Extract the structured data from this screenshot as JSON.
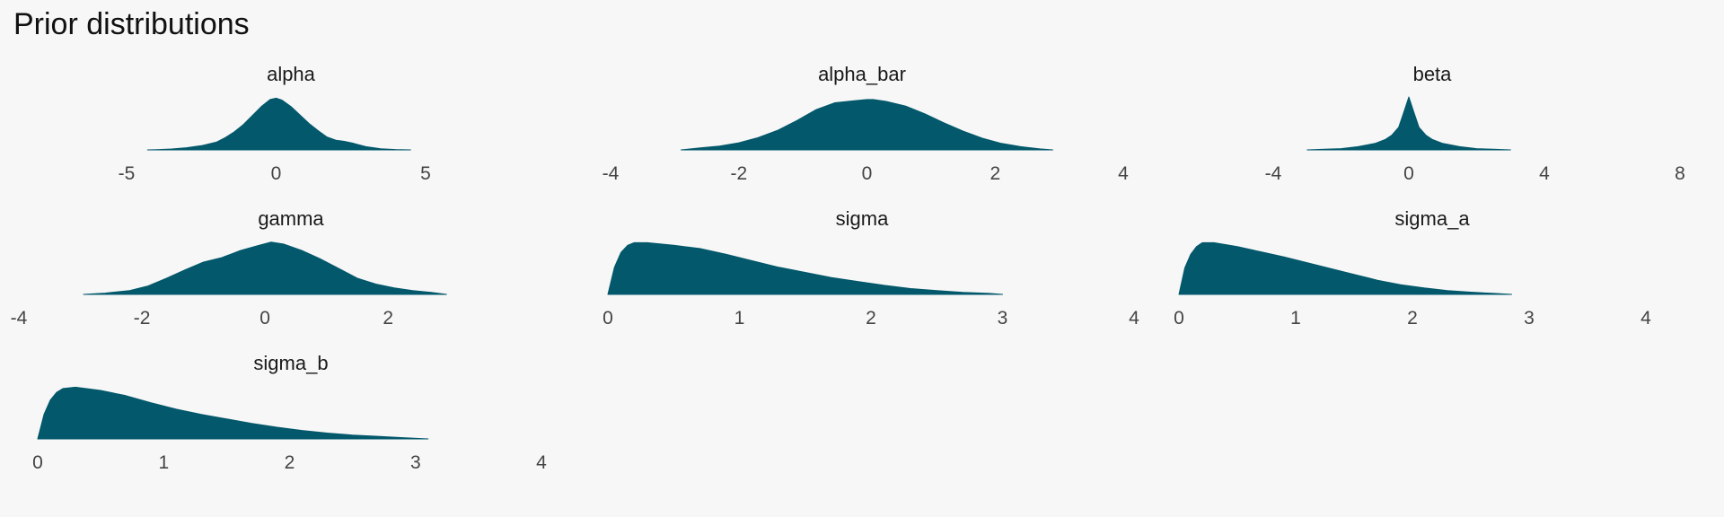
{
  "title": "Prior distributions",
  "colors": {
    "fill": "#03586b",
    "background": "#f7f7f7",
    "title_text": "#111111",
    "tick_text": "#444444"
  },
  "chart_data": [
    {
      "type": "area",
      "title": "alpha",
      "xlim": [
        -5,
        5
      ],
      "xticks": [
        -5,
        0,
        5
      ],
      "x": [
        -4.3,
        -4.0,
        -3.5,
        -3.0,
        -2.5,
        -2.0,
        -1.7,
        -1.4,
        -1.1,
        -0.8,
        -0.5,
        -0.2,
        0.0,
        0.2,
        0.5,
        0.8,
        1.1,
        1.4,
        1.7,
        2.0,
        2.3,
        2.6,
        3.0,
        3.5,
        4.0,
        4.5
      ],
      "y": [
        0.0,
        0.004,
        0.014,
        0.033,
        0.066,
        0.12,
        0.19,
        0.28,
        0.39,
        0.53,
        0.67,
        0.78,
        0.8,
        0.77,
        0.67,
        0.54,
        0.41,
        0.3,
        0.2,
        0.15,
        0.13,
        0.1,
        0.05,
        0.018,
        0.005,
        0.0
      ]
    },
    {
      "type": "area",
      "title": "alpha_bar",
      "xlim": [
        -4,
        4
      ],
      "xticks": [
        -4,
        -2,
        0,
        2,
        4
      ],
      "x": [
        -2.9,
        -2.6,
        -2.3,
        -2.0,
        -1.7,
        -1.4,
        -1.1,
        -0.8,
        -0.5,
        -0.2,
        0.0,
        0.1,
        0.3,
        0.6,
        0.9,
        1.2,
        1.5,
        1.8,
        2.1,
        2.4,
        2.7,
        2.9
      ],
      "y": [
        0.0,
        0.03,
        0.06,
        0.11,
        0.19,
        0.3,
        0.45,
        0.62,
        0.73,
        0.76,
        0.78,
        0.78,
        0.75,
        0.68,
        0.56,
        0.42,
        0.29,
        0.18,
        0.1,
        0.05,
        0.015,
        0.0
      ]
    },
    {
      "type": "area",
      "title": "beta",
      "xlim": [
        -4,
        8
      ],
      "xticks": [
        -4,
        0,
        4,
        8
      ],
      "x": [
        -3.0,
        -2.5,
        -2.0,
        -1.5,
        -1.0,
        -0.7,
        -0.5,
        -0.3,
        -0.15,
        0.0,
        0.15,
        0.3,
        0.5,
        0.7,
        1.0,
        1.5,
        2.0,
        2.5,
        3.0
      ],
      "y": [
        0.0,
        0.01,
        0.02,
        0.05,
        0.1,
        0.16,
        0.23,
        0.35,
        0.58,
        0.82,
        0.58,
        0.35,
        0.23,
        0.16,
        0.1,
        0.05,
        0.02,
        0.01,
        0.0
      ]
    },
    {
      "type": "area",
      "title": "gamma",
      "xlim": [
        -4,
        2.8
      ],
      "xticks": [
        -4,
        -2,
        0,
        2
      ],
      "x": [
        -2.95,
        -2.6,
        -2.2,
        -1.9,
        -1.6,
        -1.3,
        -1.0,
        -0.7,
        -0.4,
        -0.1,
        0.1,
        0.3,
        0.6,
        0.9,
        1.2,
        1.5,
        1.8,
        2.1,
        2.4,
        2.7,
        2.95
      ],
      "y": [
        0.0,
        0.02,
        0.06,
        0.13,
        0.25,
        0.38,
        0.5,
        0.57,
        0.68,
        0.76,
        0.81,
        0.78,
        0.68,
        0.55,
        0.4,
        0.25,
        0.16,
        0.1,
        0.06,
        0.03,
        0.0
      ]
    },
    {
      "type": "area",
      "title": "sigma",
      "xlim": [
        0,
        4
      ],
      "xticks": [
        0,
        1,
        2,
        3,
        4
      ],
      "x": [
        0.0,
        0.05,
        0.1,
        0.15,
        0.2,
        0.3,
        0.5,
        0.7,
        0.9,
        1.1,
        1.3,
        1.5,
        1.7,
        1.9,
        2.1,
        2.3,
        2.5,
        2.7,
        2.9,
        3.0
      ],
      "y": [
        0.0,
        0.42,
        0.65,
        0.76,
        0.8,
        0.8,
        0.76,
        0.71,
        0.62,
        0.52,
        0.42,
        0.34,
        0.26,
        0.2,
        0.14,
        0.09,
        0.06,
        0.03,
        0.015,
        0.0
      ]
    },
    {
      "type": "area",
      "title": "sigma_a",
      "xlim": [
        0,
        4
      ],
      "xticks": [
        0,
        1,
        2,
        3,
        4
      ],
      "x": [
        0.0,
        0.05,
        0.1,
        0.15,
        0.2,
        0.3,
        0.5,
        0.7,
        0.9,
        1.1,
        1.3,
        1.5,
        1.7,
        1.9,
        2.1,
        2.3,
        2.5,
        2.7,
        2.85
      ],
      "y": [
        0.0,
        0.41,
        0.62,
        0.74,
        0.8,
        0.8,
        0.74,
        0.66,
        0.58,
        0.49,
        0.4,
        0.31,
        0.22,
        0.15,
        0.1,
        0.06,
        0.035,
        0.015,
        0.0
      ]
    },
    {
      "type": "area",
      "title": "sigma_b",
      "xlim": [
        0,
        4
      ],
      "xticks": [
        0,
        1,
        2,
        3,
        4
      ],
      "x": [
        0.0,
        0.05,
        0.1,
        0.15,
        0.2,
        0.3,
        0.5,
        0.7,
        0.9,
        1.1,
        1.3,
        1.5,
        1.7,
        1.9,
        2.1,
        2.3,
        2.5,
        2.7,
        2.9,
        3.1
      ],
      "y": [
        0.0,
        0.38,
        0.6,
        0.72,
        0.78,
        0.8,
        0.75,
        0.67,
        0.56,
        0.46,
        0.38,
        0.31,
        0.24,
        0.18,
        0.13,
        0.09,
        0.06,
        0.04,
        0.02,
        0.0
      ]
    }
  ]
}
